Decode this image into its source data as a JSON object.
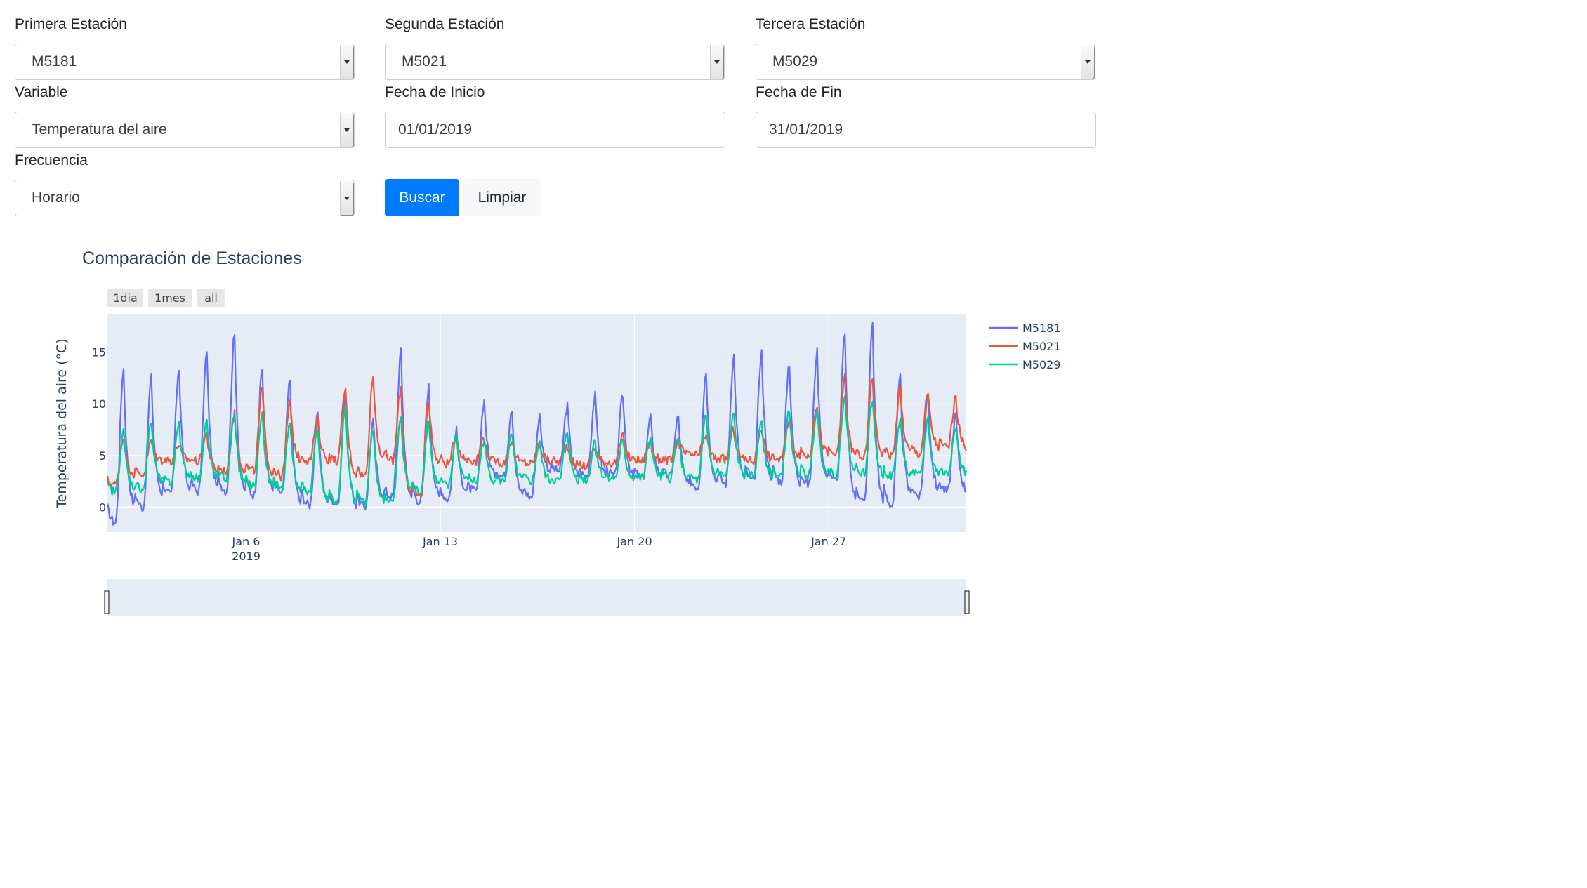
{
  "form": {
    "station1": {
      "label": "Primera Estación",
      "value": "M5181"
    },
    "station2": {
      "label": "Segunda Estación",
      "value": "M5021"
    },
    "station3": {
      "label": "Tercera Estación",
      "value": "M5029"
    },
    "variable": {
      "label": "Variable",
      "value": "Temperatura del aire"
    },
    "start_date": {
      "label": "Fecha de Inicio",
      "value": "01/01/2019"
    },
    "end_date": {
      "label": "Fecha de Fin",
      "value": "31/01/2019"
    },
    "frequency": {
      "label": "Frecuencia",
      "value": "Horario"
    },
    "search_label": "Buscar",
    "clear_label": "Limpiar"
  },
  "range_buttons": [
    "1dia",
    "1mes",
    "all"
  ],
  "colors": {
    "primary": "#007bff",
    "plot_bg": "#e5ecf6",
    "title": "#2a3f5f"
  },
  "chart_data": {
    "type": "line",
    "title": "Comparación de Estaciones",
    "ylabel": "Temperatura del aire (°C)",
    "xlabel": "",
    "x_unit": "date (hourly, daily points shown as daily min/max)",
    "xlim": [
      "2019-01-01",
      "2019-01-31"
    ],
    "ylim": [
      -2.4,
      18.7
    ],
    "yticks": [
      0,
      5,
      10,
      15
    ],
    "xticks": [
      {
        "value": "2019-01-06",
        "label": "Jan 6",
        "sublabel": "2019"
      },
      {
        "value": "2019-01-13",
        "label": "Jan 13"
      },
      {
        "value": "2019-01-20",
        "label": "Jan 20"
      },
      {
        "value": "2019-01-27",
        "label": "Jan 27"
      }
    ],
    "grid": true,
    "legend_position": "right",
    "days": [
      "2019-01-01",
      "2019-01-02",
      "2019-01-03",
      "2019-01-04",
      "2019-01-05",
      "2019-01-06",
      "2019-01-07",
      "2019-01-08",
      "2019-01-09",
      "2019-01-10",
      "2019-01-11",
      "2019-01-12",
      "2019-01-13",
      "2019-01-14",
      "2019-01-15",
      "2019-01-16",
      "2019-01-17",
      "2019-01-18",
      "2019-01-19",
      "2019-01-20",
      "2019-01-21",
      "2019-01-22",
      "2019-01-23",
      "2019-01-24",
      "2019-01-25",
      "2019-01-26",
      "2019-01-27",
      "2019-01-28",
      "2019-01-29",
      "2019-01-30",
      "2019-01-31"
    ],
    "series": [
      {
        "name": "M5181",
        "color": "#636efa",
        "daily_min": [
          -1.5,
          0.0,
          1.2,
          1.5,
          1.6,
          1.2,
          1.4,
          0.2,
          0.3,
          0.0,
          1.0,
          0.5,
          0.8,
          1.5,
          3.0,
          1.0,
          3.5,
          3.0,
          3.0,
          2.8,
          3.0,
          2.0,
          2.3,
          2.5,
          2.5,
          2.2,
          2.5,
          0.5,
          0.2,
          1.0,
          1.5
        ],
        "daily_max": [
          13.4,
          12.5,
          13.5,
          14.9,
          16.6,
          13.4,
          12.3,
          8.8,
          10.9,
          8.3,
          15.0,
          11.6,
          7.4,
          10.3,
          9.6,
          8.8,
          9.8,
          10.8,
          10.8,
          8.6,
          8.8,
          13.1,
          14.7,
          15.0,
          14.0,
          15.0,
          16.6,
          17.8,
          12.5,
          11.0,
          9.0
        ]
      },
      {
        "name": "M5021",
        "color": "#ef553b",
        "daily_min": [
          2.2,
          3.2,
          4.5,
          4.5,
          3.5,
          3.5,
          3.0,
          4.5,
          4.5,
          3.0,
          4.5,
          1.0,
          4.2,
          4.5,
          4.3,
          4.2,
          4.4,
          4.0,
          4.3,
          4.5,
          4.5,
          5.0,
          4.6,
          4.5,
          4.6,
          5.0,
          5.1,
          4.8,
          5.0,
          5.2,
          5.8
        ],
        "daily_max": [
          6.8,
          6.4,
          6.1,
          7.1,
          9.0,
          11.5,
          10.1,
          8.5,
          11.5,
          12.6,
          11.5,
          10.5,
          7.0,
          6.8,
          6.5,
          6.2,
          6.0,
          5.8,
          6.8,
          6.4,
          6.5,
          7.0,
          7.5,
          7.8,
          8.5,
          10.0,
          12.5,
          12.5,
          11.5,
          11.0,
          10.5
        ]
      },
      {
        "name": "M5029",
        "color": "#00cc96",
        "daily_min": [
          1.5,
          1.8,
          2.3,
          2.8,
          2.8,
          2.0,
          1.8,
          1.5,
          0.5,
          0.4,
          0.5,
          1.5,
          2.0,
          2.5,
          2.5,
          2.5,
          2.5,
          2.6,
          2.8,
          2.8,
          2.8,
          2.6,
          3.0,
          3.0,
          3.0,
          3.1,
          3.2,
          3.3,
          3.0,
          3.0,
          3.2
        ],
        "daily_max": [
          7.3,
          8.3,
          8.3,
          8.3,
          9.2,
          9.0,
          8.4,
          7.8,
          9.8,
          7.5,
          8.8,
          8.5,
          7.0,
          6.5,
          7.0,
          6.3,
          7.5,
          6.5,
          6.3,
          6.7,
          7.0,
          8.8,
          9.0,
          8.5,
          9.5,
          9.5,
          11.0,
          10.5,
          8.5,
          8.5,
          8.0
        ]
      }
    ]
  }
}
